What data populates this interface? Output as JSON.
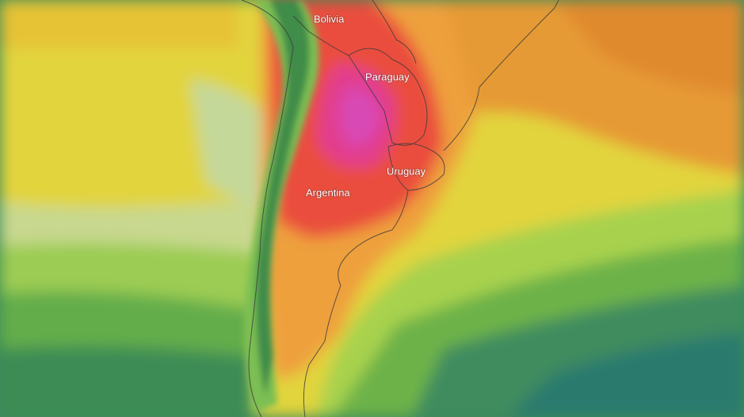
{
  "labels": [
    "Bolivia",
    "Paraguay",
    "Argentina",
    "Uruguay"
  ]
}
